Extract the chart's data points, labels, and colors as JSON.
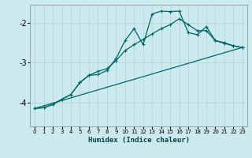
{
  "xlabel": "Humidex (Indice chaleur)",
  "background_color": "#cce9ed",
  "line_color": "#006666",
  "xlim": [
    -0.5,
    23.5
  ],
  "ylim": [
    -4.6,
    -1.55
  ],
  "yticks": [
    -4,
    -3,
    -2
  ],
  "xticks": [
    0,
    1,
    2,
    3,
    4,
    5,
    6,
    7,
    8,
    9,
    10,
    11,
    12,
    13,
    14,
    15,
    16,
    17,
    18,
    19,
    20,
    21,
    22,
    23
  ],
  "series1_x": [
    0,
    1,
    2,
    3,
    4,
    5,
    6,
    7,
    8,
    9,
    10,
    11,
    12,
    13,
    14,
    15,
    16,
    17,
    18,
    19,
    20,
    21,
    22,
    23
  ],
  "series1_y": [
    -4.15,
    -4.13,
    -4.05,
    -3.92,
    -3.8,
    -3.5,
    -3.32,
    -3.3,
    -3.2,
    -2.9,
    -2.45,
    -2.15,
    -2.55,
    -1.78,
    -1.71,
    -1.72,
    -1.71,
    -2.25,
    -2.3,
    -2.1,
    -2.45,
    -2.5,
    -2.58,
    -2.62
  ],
  "series2_x": [
    0,
    1,
    2,
    3,
    4,
    5,
    6,
    7,
    8,
    9,
    10,
    11,
    12,
    13,
    14,
    15,
    16,
    17,
    18,
    19,
    20,
    21,
    22,
    23
  ],
  "series2_y": [
    -4.15,
    -4.13,
    -4.05,
    -3.92,
    -3.8,
    -3.5,
    -3.32,
    -3.22,
    -3.15,
    -2.95,
    -2.7,
    -2.55,
    -2.42,
    -2.28,
    -2.15,
    -2.05,
    -1.9,
    -2.05,
    -2.2,
    -2.2,
    -2.45,
    -2.52,
    -2.58,
    -2.62
  ],
  "series3_x": [
    0,
    23
  ],
  "series3_y": [
    -4.15,
    -2.62
  ]
}
